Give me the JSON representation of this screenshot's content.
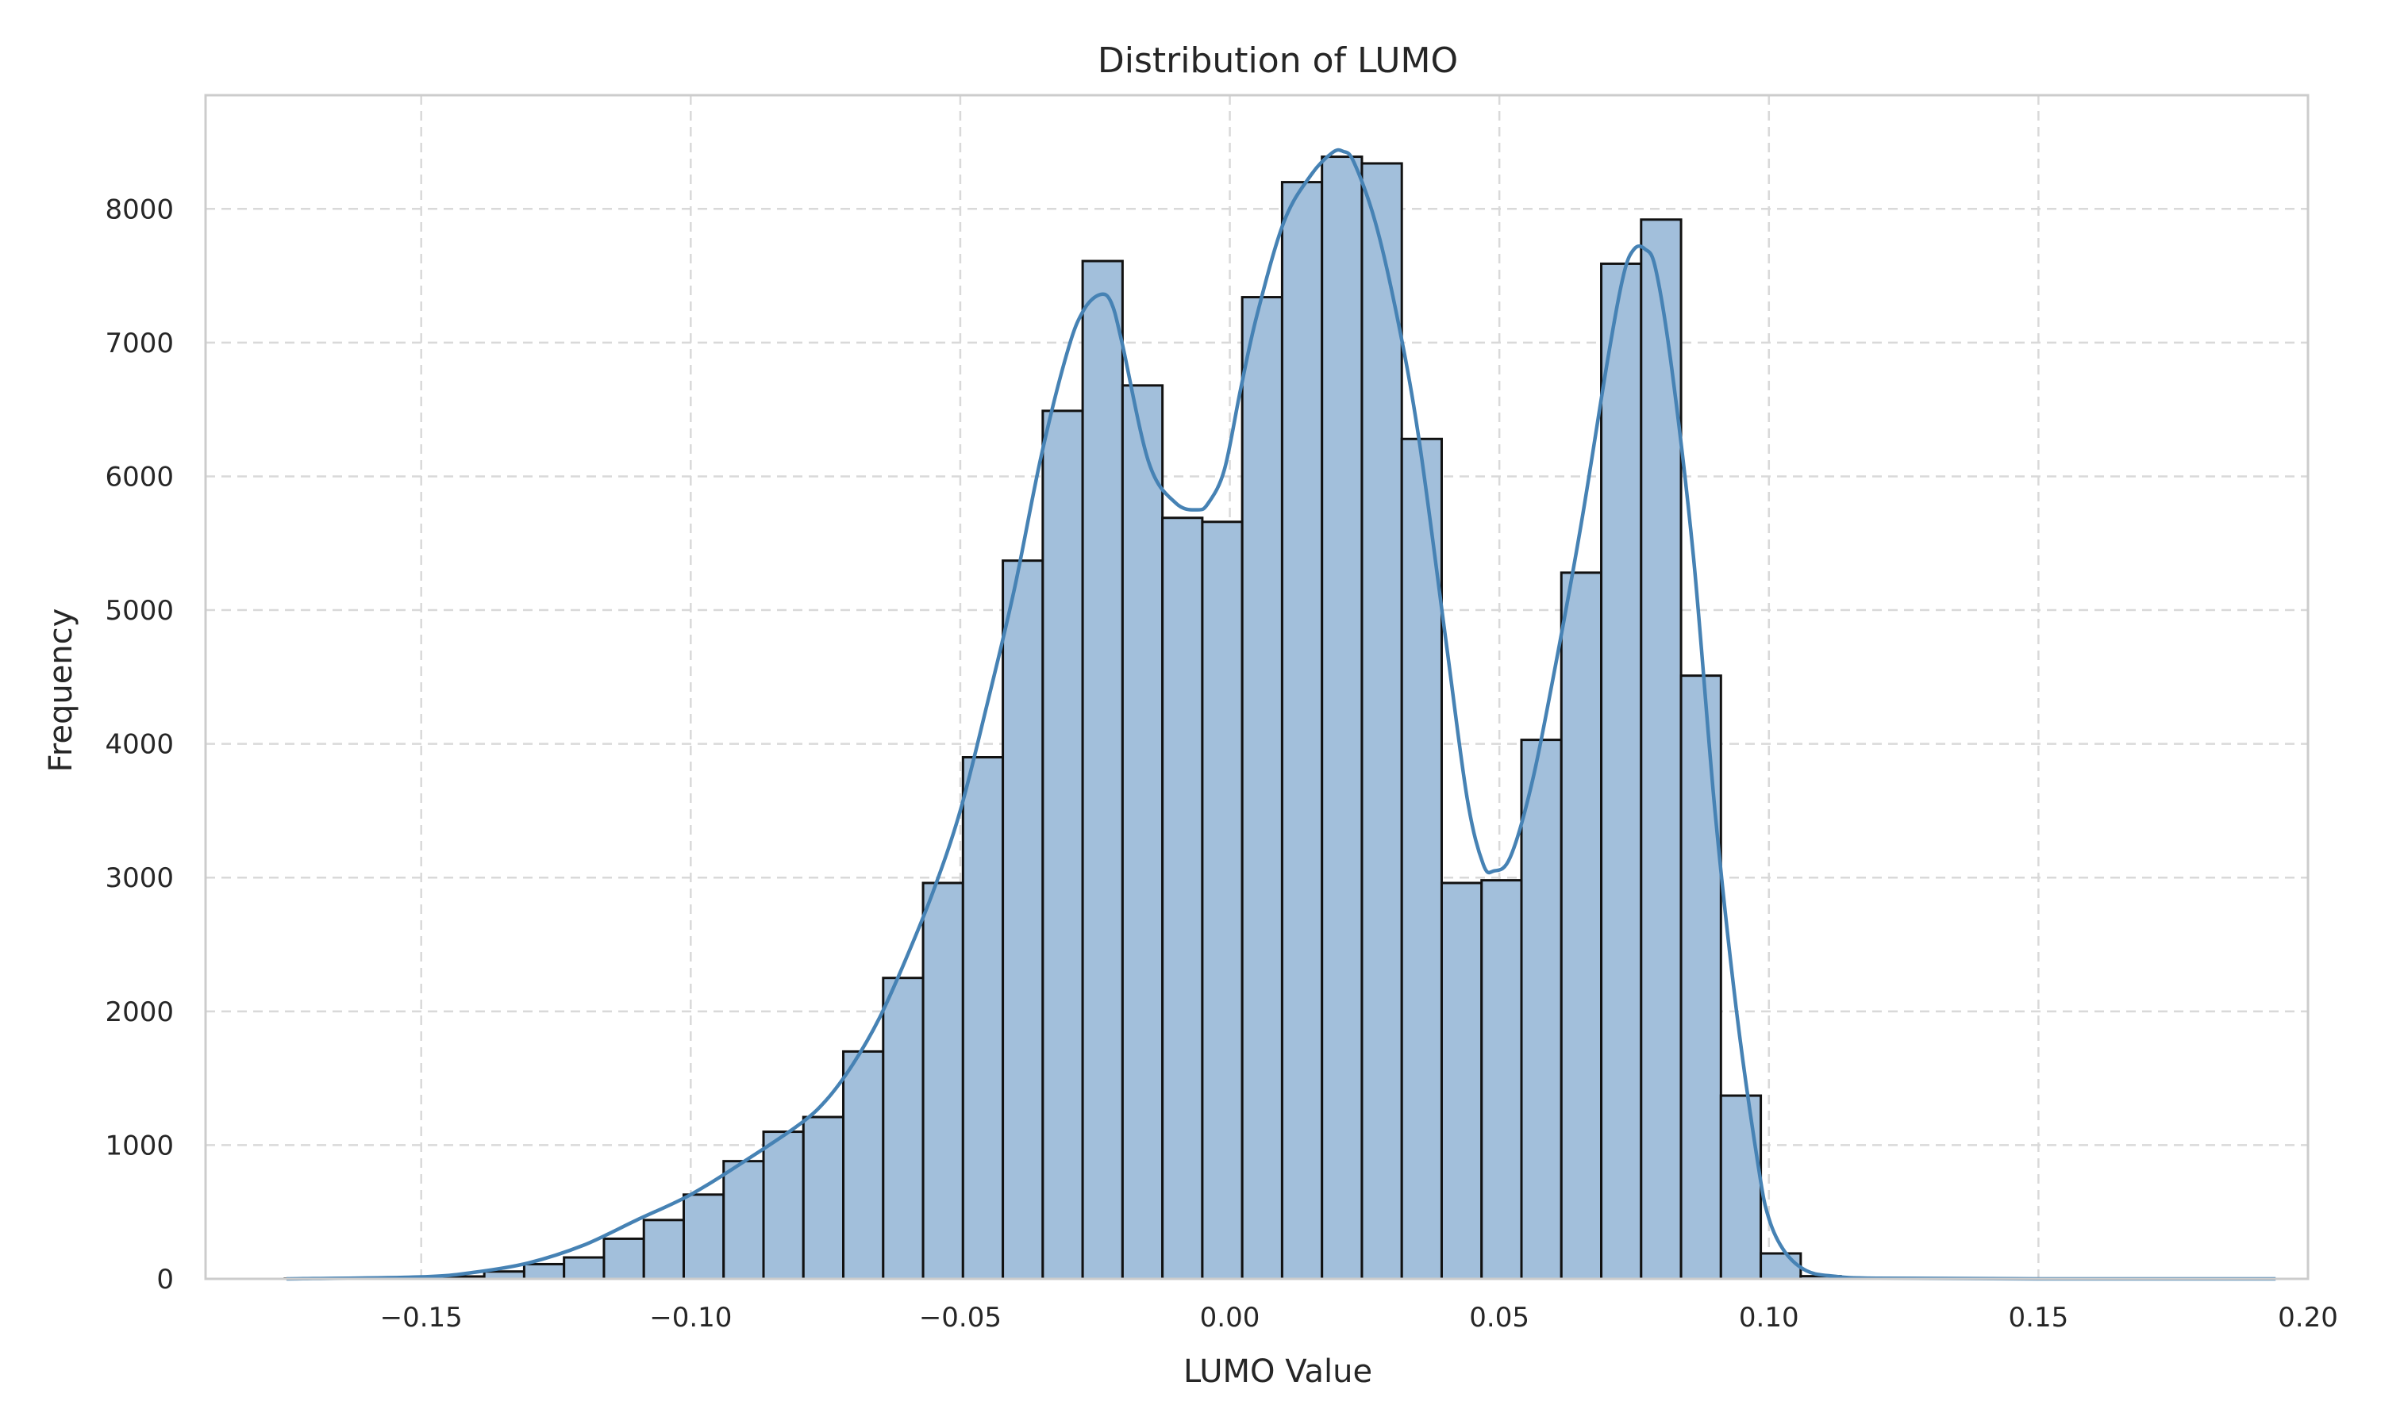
{
  "chart_data": {
    "type": "bar",
    "subtype": "histogram-with-kde",
    "title": "Distribution of LUMO",
    "xlabel": "LUMO Value",
    "ylabel": "Frequency",
    "xlim": [
      -0.19,
      0.2
    ],
    "ylim": [
      0,
      8850
    ],
    "x_ticks": [
      -0.15,
      -0.1,
      -0.05,
      0.0,
      0.05,
      0.1,
      0.15,
      0.2
    ],
    "x_tick_labels": [
      "−0.15",
      "−0.10",
      "−0.05",
      "0.00",
      "0.05",
      "0.10",
      "0.15",
      "0.20"
    ],
    "y_ticks": [
      0,
      1000,
      2000,
      3000,
      4000,
      5000,
      6000,
      7000,
      8000
    ],
    "y_tick_labels": [
      "0",
      "1000",
      "2000",
      "3000",
      "4000",
      "5000",
      "6000",
      "7000",
      "8000"
    ],
    "grid": true,
    "legend": "none",
    "colors": {
      "bar_fill": "#a2bfdb",
      "bar_edge": "#111111",
      "kde_line": "#4682b4",
      "grid": "#d9d9d9",
      "frame": "#cccccc"
    },
    "bin_edges": [
      -0.1753,
      -0.1679,
      -0.1605,
      -0.1531,
      -0.1457,
      -0.1383,
      -0.1309,
      -0.1235,
      -0.1161,
      -0.1087,
      -0.1013,
      -0.0939,
      -0.0865,
      -0.0791,
      -0.0717,
      -0.0643,
      -0.0569,
      -0.0495,
      -0.0421,
      -0.0347,
      -0.0273,
      -0.0199,
      -0.0125,
      -0.0051,
      0.0023,
      0.0097,
      0.0171,
      0.0245,
      0.0319,
      0.0393,
      0.0467,
      0.0541,
      0.0615,
      0.0689,
      0.0763,
      0.0837,
      0.0911,
      0.0985,
      0.1059,
      0.1133,
      0.1207,
      0.1281,
      0.1355,
      0.1429,
      0.1503,
      0.1577,
      0.1651,
      0.1725,
      0.1799,
      0.1873,
      0.1947
    ],
    "counts": [
      2,
      3,
      5,
      10,
      18,
      55,
      110,
      160,
      300,
      440,
      630,
      880,
      1100,
      1210,
      1700,
      2250,
      2960,
      3900,
      5370,
      6490,
      7610,
      6680,
      5690,
      5660,
      7340,
      8200,
      8390,
      8340,
      6280,
      2960,
      2980,
      4030,
      5280,
      7590,
      7920,
      4510,
      1370,
      190,
      20,
      5,
      2,
      1,
      1,
      0,
      0,
      0,
      0,
      0,
      0,
      0
    ],
    "kde": {
      "x": [
        -0.175,
        -0.15,
        -0.14,
        -0.13,
        -0.12,
        -0.11,
        -0.1,
        -0.09,
        -0.08,
        -0.075,
        -0.07,
        -0.065,
        -0.06,
        -0.055,
        -0.05,
        -0.045,
        -0.04,
        -0.035,
        -0.03,
        -0.027,
        -0.024,
        -0.022,
        -0.02,
        -0.015,
        -0.01,
        -0.006,
        -0.004,
        -0.001,
        0.002,
        0.005,
        0.01,
        0.015,
        0.019,
        0.021,
        0.023,
        0.027,
        0.031,
        0.035,
        0.04,
        0.044,
        0.047,
        0.049,
        0.052,
        0.056,
        0.06,
        0.065,
        0.07,
        0.073,
        0.075,
        0.077,
        0.079,
        0.082,
        0.086,
        0.09,
        0.094,
        0.098,
        0.1,
        0.103,
        0.107,
        0.112,
        0.12,
        0.15,
        0.194
      ],
      "y": [
        0,
        15,
        50,
        120,
        250,
        440,
        630,
        880,
        1150,
        1330,
        1600,
        1950,
        2400,
        2900,
        3500,
        4300,
        5150,
        6150,
        6950,
        7250,
        7360,
        7300,
        7000,
        6100,
        5800,
        5750,
        5800,
        6050,
        6650,
        7200,
        7900,
        8250,
        8420,
        8430,
        8350,
        7900,
        7200,
        6300,
        4800,
        3600,
        3100,
        3050,
        3150,
        3700,
        4500,
        5600,
        6850,
        7500,
        7700,
        7700,
        7550,
        6800,
        5400,
        3500,
        2000,
        850,
        450,
        200,
        60,
        20,
        5,
        0,
        0
      ]
    }
  }
}
